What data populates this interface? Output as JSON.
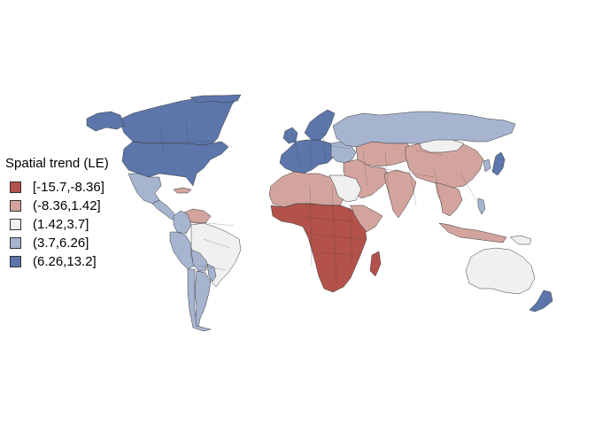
{
  "legend": {
    "title": "Spatial trend (LE)",
    "items": [
      {
        "label": "[-15.7,-8.36]",
        "color": "#b2524a"
      },
      {
        "label": "(-8.36,1.42]",
        "color": "#d3a49d"
      },
      {
        "label": "(1.42,3.7]",
        "color": "#f0f0f0"
      },
      {
        "label": "(3.7,6.26]",
        "color": "#a6b4cf"
      },
      {
        "label": "(6.26,13.2]",
        "color": "#5c76ab"
      }
    ]
  },
  "map_regions": [
    {
      "name": "Canada",
      "class": 5
    },
    {
      "name": "United States",
      "class": 5
    },
    {
      "name": "Alaska",
      "class": 5
    },
    {
      "name": "Greenland",
      "class": 5
    },
    {
      "name": "Mexico",
      "class": 4
    },
    {
      "name": "Central America",
      "class": 4
    },
    {
      "name": "Cuba",
      "class": 2
    },
    {
      "name": "Venezuela",
      "class": 2
    },
    {
      "name": "Colombia",
      "class": 4
    },
    {
      "name": "Ecuador and Peru",
      "class": 4
    },
    {
      "name": "Brazil",
      "class": 3
    },
    {
      "name": "Bolivia",
      "class": 4
    },
    {
      "name": "Argentina",
      "class": 4
    },
    {
      "name": "Chile",
      "class": 4
    },
    {
      "name": "Paraguay and Uruguay",
      "class": 4
    },
    {
      "name": "Western Europe",
      "class": 5
    },
    {
      "name": "Scandinavia",
      "class": 5
    },
    {
      "name": "UK and Ireland",
      "class": 5
    },
    {
      "name": "Eastern Europe",
      "class": 4
    },
    {
      "name": "Russia",
      "class": 4
    },
    {
      "name": "Central Asia",
      "class": 2
    },
    {
      "name": "Middle East",
      "class": 2
    },
    {
      "name": "India",
      "class": 2
    },
    {
      "name": "China",
      "class": 2
    },
    {
      "name": "Mongolia",
      "class": 3
    },
    {
      "name": "Southeast Asia",
      "class": 2
    },
    {
      "name": "Indonesia",
      "class": 2
    },
    {
      "name": "Philippines",
      "class": 4
    },
    {
      "name": "Japan",
      "class": 5
    },
    {
      "name": "Korea",
      "class": 4
    },
    {
      "name": "North Africa west",
      "class": 2
    },
    {
      "name": "Libya and Egypt",
      "class": 3
    },
    {
      "name": "Sub-Saharan Africa",
      "class": 1
    },
    {
      "name": "Horn of Africa",
      "class": 2
    },
    {
      "name": "Madagascar",
      "class": 1
    },
    {
      "name": "Australia",
      "class": 3
    },
    {
      "name": "New Zealand",
      "class": 5
    },
    {
      "name": "Papua New Guinea",
      "class": 3
    }
  ]
}
